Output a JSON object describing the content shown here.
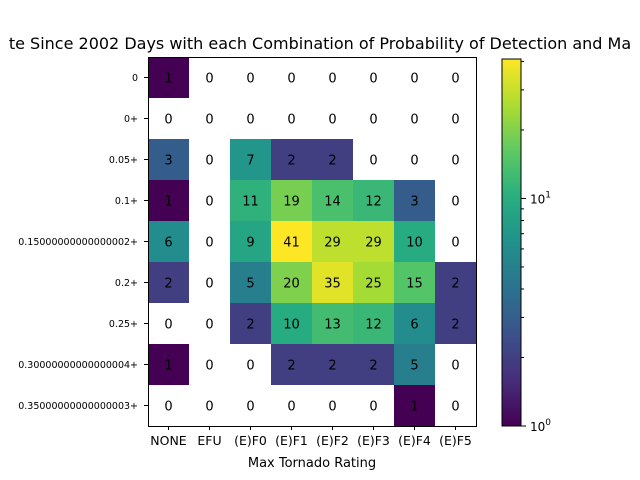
{
  "chart_data": {
    "type": "heatmap",
    "title": "te Since 2002 Days with each Combination of Probability of Detection and Ma",
    "xlabel": "Max Tornado Rating",
    "ylabel": "",
    "x_categories": [
      "NONE",
      "EFU",
      "(E)F0",
      "(E)F1",
      "(E)F2",
      "(E)F3",
      "(E)F4",
      "(E)F5"
    ],
    "y_categories": [
      "0",
      "0+",
      "0.05+",
      "0.1+",
      "0.15000000000000002+",
      "0.2+",
      "0.25+",
      "0.30000000000000004+",
      "0.35000000000000003+"
    ],
    "values": [
      [
        1,
        0,
        0,
        0,
        0,
        0,
        0,
        0
      ],
      [
        0,
        0,
        0,
        0,
        0,
        0,
        0,
        0
      ],
      [
        3,
        0,
        7,
        2,
        2,
        0,
        0,
        0
      ],
      [
        1,
        0,
        11,
        19,
        14,
        12,
        3,
        0
      ],
      [
        6,
        0,
        9,
        41,
        29,
        29,
        10,
        0
      ],
      [
        2,
        0,
        5,
        20,
        35,
        25,
        15,
        2
      ],
      [
        0,
        0,
        2,
        10,
        13,
        12,
        6,
        2
      ],
      [
        1,
        0,
        0,
        2,
        2,
        2,
        5,
        0
      ],
      [
        0,
        0,
        0,
        0,
        0,
        0,
        1,
        0
      ]
    ],
    "colorbar": {
      "scale": "log",
      "range": [
        1,
        41
      ],
      "colormap": "viridis",
      "tick_labels": [
        "10^0",
        "10^1"
      ]
    },
    "zero_cells": "white"
  }
}
